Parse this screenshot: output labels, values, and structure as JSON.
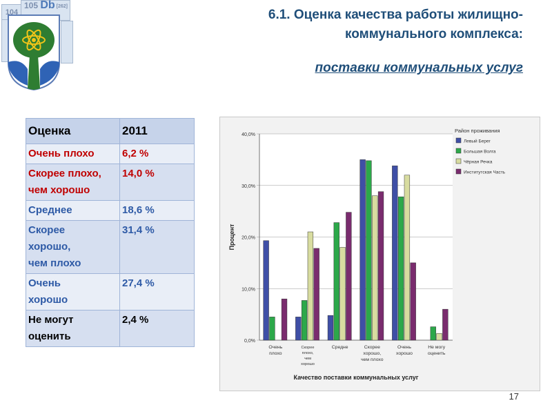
{
  "logo": {
    "tile_left": "104",
    "tile_main": "105",
    "tile_db": "Db",
    "tile_code": "[262]"
  },
  "slide": {
    "title_line1": "6.1. Оценка качества работы жилищно-",
    "title_line2": "коммунального комплекса:",
    "subtitle": "поставки коммунальных услуг",
    "page_number": "17"
  },
  "table": {
    "header": [
      "Оценка",
      "2011"
    ],
    "rows": [
      {
        "label_lines": [
          "Очень плохо"
        ],
        "value": "6,2 %",
        "color": "red"
      },
      {
        "label_lines": [
          "Скорее плохо,",
          "чем хорошо"
        ],
        "value": "14,0 %",
        "color": "red"
      },
      {
        "label_lines": [
          "Среднее"
        ],
        "value": "18,6 %",
        "color": "blue"
      },
      {
        "label_lines": [
          "Скорее",
          "хорошо,",
          "чем плохо"
        ],
        "value": "31,4 %",
        "color": "blue"
      },
      {
        "label_lines": [
          "Очень",
          "хорошо"
        ],
        "value": "27,4 %",
        "color": "blue"
      },
      {
        "label_lines": [
          "Не могут",
          "оценить"
        ],
        "value": "2,4 %",
        "color": "black"
      }
    ]
  },
  "chart_data": {
    "type": "bar",
    "title": "",
    "xlabel": "Качество поставки коммунальных услуг",
    "ylabel": "Процент",
    "ylim": [
      0,
      40
    ],
    "yticks": [
      "0,0%",
      "10,0%",
      "20,0%",
      "30,0%",
      "40,0%"
    ],
    "ytick_values": [
      0,
      10,
      20,
      30,
      40
    ],
    "categories": [
      [
        "Очень",
        "плохо"
      ],
      [
        "Скорее",
        "плохо,",
        "чем",
        "хорошо"
      ],
      [
        "Средне"
      ],
      [
        "Скорее",
        "хорошо,",
        "чем плохо"
      ],
      [
        "Очень",
        "хорошо"
      ],
      [
        "Не могу",
        "оценить"
      ]
    ],
    "legend_title": "Район проживания",
    "legend_position": "top-right",
    "series": [
      {
        "name": "Левый Берег",
        "color": "#3f4fa6",
        "values": [
          19.3,
          4.5,
          4.8,
          35.0,
          33.8,
          0.0
        ]
      },
      {
        "name": "Большая Волга",
        "color": "#2ca84a",
        "values": [
          4.5,
          7.7,
          22.8,
          34.8,
          27.8,
          2.6
        ]
      },
      {
        "name": "Чёрная Речка",
        "color": "#d8dca0",
        "values": [
          0.0,
          21.0,
          18.0,
          28.0,
          32.0,
          1.3
        ]
      },
      {
        "name": "Институтская Часть",
        "color": "#7a2c6e",
        "values": [
          8.0,
          17.8,
          24.8,
          28.8,
          15.0,
          6.0
        ]
      }
    ]
  }
}
